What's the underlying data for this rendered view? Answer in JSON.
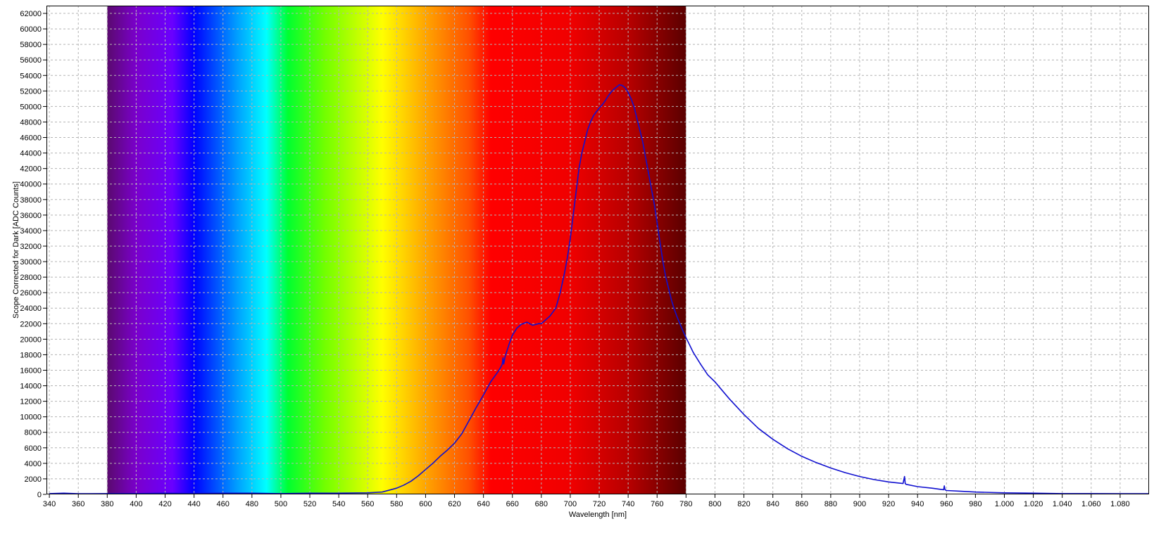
{
  "chart_data": {
    "type": "line",
    "title": "",
    "xlabel": "Wavelength [nm]",
    "ylabel": "Scope Corrected for Dark [ADC Counts]",
    "xlim": [
      338,
      1100
    ],
    "ylim": [
      0,
      63000
    ],
    "x_ticks": [
      340,
      360,
      380,
      400,
      420,
      440,
      460,
      480,
      500,
      520,
      540,
      560,
      580,
      600,
      620,
      640,
      660,
      680,
      700,
      720,
      740,
      760,
      780,
      800,
      820,
      840,
      860,
      880,
      900,
      920,
      940,
      960,
      980,
      1000,
      1020,
      1040,
      1060,
      1080
    ],
    "x_tick_labels": [
      "340",
      "360",
      "380",
      "400",
      "420",
      "440",
      "460",
      "480",
      "500",
      "520",
      "540",
      "560",
      "580",
      "600",
      "620",
      "640",
      "660",
      "680",
      "700",
      "720",
      "740",
      "760",
      "780",
      "800",
      "820",
      "840",
      "860",
      "880",
      "900",
      "920",
      "940",
      "960",
      "980",
      "1.000",
      "1.020",
      "1.040",
      "1.060",
      "1.080"
    ],
    "y_ticks": [
      0,
      2000,
      4000,
      6000,
      8000,
      10000,
      12000,
      14000,
      16000,
      18000,
      20000,
      22000,
      24000,
      26000,
      28000,
      30000,
      32000,
      34000,
      36000,
      38000,
      40000,
      42000,
      44000,
      46000,
      48000,
      50000,
      52000,
      54000,
      56000,
      58000,
      60000,
      62000
    ],
    "grid": true,
    "legend": "none",
    "visible_spectrum_band": {
      "range": [
        380,
        780
      ],
      "stops": [
        {
          "nm": 380,
          "color": "#5a0a6e"
        },
        {
          "nm": 400,
          "color": "#7a00cc"
        },
        {
          "nm": 425,
          "color": "#6a00ff"
        },
        {
          "nm": 440,
          "color": "#0000ff"
        },
        {
          "nm": 470,
          "color": "#00a0ff"
        },
        {
          "nm": 490,
          "color": "#00ffff"
        },
        {
          "nm": 505,
          "color": "#00ff30"
        },
        {
          "nm": 530,
          "color": "#70ff00"
        },
        {
          "nm": 570,
          "color": "#ffff00"
        },
        {
          "nm": 600,
          "color": "#ffa500"
        },
        {
          "nm": 630,
          "color": "#ff5000"
        },
        {
          "nm": 645,
          "color": "#ff0000"
        },
        {
          "nm": 700,
          "color": "#f00000"
        },
        {
          "nm": 740,
          "color": "#b80000"
        },
        {
          "nm": 780,
          "color": "#5a0000"
        }
      ]
    },
    "series": [
      {
        "color": "#1010d0",
        "x": [
          340,
          350,
          360,
          380,
          400,
          420,
          440,
          460,
          480,
          500,
          520,
          540,
          560,
          570,
          580,
          585,
          590,
          595,
          600,
          605,
          610,
          615,
          620,
          625,
          630,
          635,
          640,
          645,
          650,
          652,
          653,
          653.5,
          654,
          655,
          658,
          660,
          663,
          666,
          670,
          674,
          678,
          680,
          683,
          686,
          690,
          693,
          696,
          698,
          700,
          702,
          704,
          706,
          708,
          710,
          712,
          714,
          716,
          718,
          720,
          722,
          724,
          726,
          728,
          730,
          732,
          734,
          736,
          738,
          740,
          742,
          744,
          746,
          748,
          750,
          752,
          754,
          756,
          758,
          760,
          762,
          764,
          766,
          768,
          770,
          772,
          774,
          776,
          778,
          780,
          785,
          790,
          795,
          800,
          805,
          810,
          820,
          830,
          840,
          850,
          860,
          870,
          880,
          890,
          900,
          910,
          920,
          930,
          931,
          931.5,
          932,
          940,
          950,
          958,
          958.5,
          959,
          960,
          970,
          980,
          1000,
          1020,
          1040,
          1060,
          1080,
          1100
        ],
        "y": [
          100,
          150,
          80,
          100,
          100,
          150,
          120,
          150,
          150,
          100,
          150,
          150,
          200,
          300,
          800,
          1200,
          1700,
          2400,
          3200,
          4000,
          4900,
          5700,
          6600,
          7800,
          9500,
          11200,
          12800,
          14500,
          15800,
          16400,
          16800,
          17600,
          16800,
          17800,
          19500,
          20500,
          21400,
          21900,
          22200,
          21800,
          22000,
          22000,
          22500,
          23000,
          24000,
          26000,
          28500,
          30500,
          33000,
          36000,
          39000,
          42000,
          44000,
          45500,
          47000,
          48000,
          48800,
          49300,
          49800,
          50200,
          50700,
          51300,
          51800,
          52200,
          52500,
          52800,
          52700,
          52400,
          51800,
          51000,
          50000,
          48500,
          47000,
          45500,
          43500,
          41500,
          39500,
          37500,
          35000,
          32500,
          30000,
          28000,
          26500,
          25000,
          23800,
          22800,
          21900,
          21000,
          20200,
          18300,
          16800,
          15400,
          14500,
          13400,
          12300,
          10300,
          8500,
          7100,
          5900,
          4900,
          4100,
          3400,
          2800,
          2300,
          1900,
          1600,
          1400,
          2300,
          1400,
          1300,
          1000,
          800,
          600,
          1100,
          600,
          500,
          400,
          300,
          200,
          150,
          100,
          100,
          80,
          80
        ]
      }
    ]
  }
}
